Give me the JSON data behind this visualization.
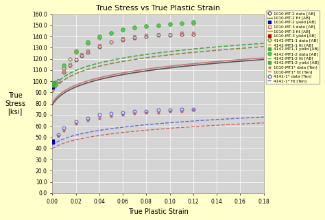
{
  "title": "True Stress vs True Plastic Strain",
  "xlabel": "True Plastic Strain",
  "ylabel": "True\nStress\n[ksi]",
  "xlim": [
    0,
    0.18
  ],
  "ylim": [
    0,
    160
  ],
  "xticks": [
    0.0,
    0.02,
    0.04,
    0.06,
    0.08,
    0.1,
    0.12,
    0.14,
    0.16,
    0.18
  ],
  "yticks": [
    0,
    10,
    20,
    30,
    40,
    50,
    60,
    70,
    80,
    90,
    100,
    110,
    120,
    130,
    140,
    150,
    160
  ],
  "background_plot": "#d4d4d4",
  "background_fig": "#ffffcc",
  "legend_entries": [
    "1010-MT-2 data [AB]",
    "1010-MT-2 fit [AB]",
    "1010-MT-2 yield [AB]",
    "1010-MT-3 data [AB]",
    "1010-MT-3 fit [AB]",
    "1010-MT-3 yield [AB]",
    "4142-MT1-1 data [AB]",
    "4142-MT1-1 fit [AB]",
    "4142-MT1-1 yield [AB]",
    "4142-MT1-2 data [AB]",
    "4142-MT1-2 fit [AB]",
    "4142-MT1-2 yield [AB]",
    "1010-MT1* data [Ten]",
    "1010-MT1* fit [Ten]",
    "4142-1* data [Ten]",
    "4142-1* fit [Ten]"
  ],
  "colors": {
    "mt2_data": "#555555",
    "mt2_fit": "#555555",
    "mt2_yield": "#0000cc",
    "mt3_data": "#cc7777",
    "mt3_fit": "#cc7777",
    "mt3_yield": "#cc0000",
    "mt11_data": "#888844",
    "mt11_fit": "#888844",
    "mt11_yield": "#44aa44",
    "mt12_data": "#44aa44",
    "mt12_fit": "#44aa44",
    "mt12_yield": "#44aa44",
    "ten1010_data": "#cc6666",
    "ten1010_fit": "#cc6666",
    "ten4142_data": "#6666cc",
    "ten4142_fit": "#6666cc"
  }
}
